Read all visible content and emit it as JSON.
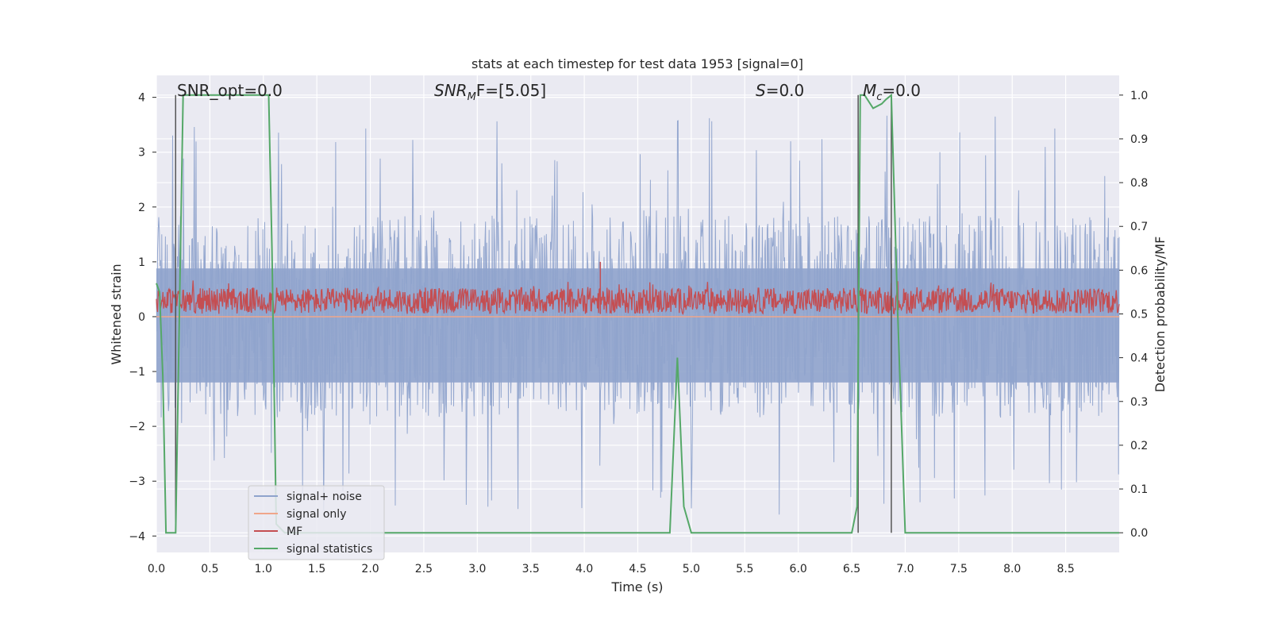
{
  "chart_data": {
    "type": "line",
    "title": "stats at each timestep for test data 1953 [signal=0]",
    "xlabel": "Time (s)",
    "ylabel": "Whitened strain",
    "ylabel_right": "Detection probability/MF",
    "xlim": [
      0.0,
      9.0
    ],
    "ylim": [
      -4.3,
      4.4
    ],
    "ylim_right": [
      -0.045,
      1.045
    ],
    "xticks": [
      "0.0",
      "0.5",
      "1.0",
      "1.5",
      "2.0",
      "2.5",
      "3.0",
      "3.5",
      "4.0",
      "4.5",
      "5.0",
      "5.5",
      "6.0",
      "6.5",
      "7.0",
      "7.5",
      "8.0",
      "8.5"
    ],
    "yticks": [
      "4",
      "3",
      "2",
      "1",
      "0",
      "−1",
      "−2",
      "−3",
      "−4"
    ],
    "yticks_right": [
      "1.0",
      "0.9",
      "0.8",
      "0.7",
      "0.6",
      "0.5",
      "0.4",
      "0.3",
      "0.2",
      "0.1",
      "0.0"
    ],
    "grid": true,
    "legend_position": "lower-left",
    "annotations": [
      {
        "text": "SNR_opt=0.0",
        "x": 0.19
      },
      {
        "text": "F=[5.05]",
        "math": "SNR",
        "sub": "M",
        "x": 2.6
      },
      {
        "text": "=0.0",
        "math": "S",
        "sub": "",
        "x": 5.6
      },
      {
        "text": "=0.0",
        "math": "M",
        "sub": "c",
        "x": 6.6
      }
    ],
    "vertical_lines_x": [
      0.18,
      6.56,
      6.87
    ],
    "series": [
      {
        "name": "signal+ noise",
        "color": "#8fa3cc",
        "envelope_typical": [
          -1.6,
          1.6
        ],
        "envelope_extreme": [
          -3.7,
          3.7
        ]
      },
      {
        "name": "signal only",
        "color": "#f0a68a",
        "values_y": 0.0
      },
      {
        "name": "MF",
        "color": "#c44e52",
        "band_right_axis": [
          0.5,
          0.56
        ],
        "peak": {
          "x": 4.15,
          "y": 1.0
        }
      },
      {
        "name": "signal statistics",
        "color": "#55a868",
        "x": [
          0.0,
          0.03,
          0.06,
          0.09,
          0.12,
          0.18,
          0.25,
          0.3,
          0.4,
          1.0,
          1.05,
          1.08,
          1.12,
          1.2,
          4.8,
          4.87,
          4.93,
          5.0,
          6.5,
          6.55,
          6.58,
          6.62,
          6.7,
          6.78,
          6.82,
          6.87,
          6.93,
          7.0,
          9.0
        ],
        "y": [
          0.57,
          0.55,
          0.36,
          0.0,
          0.0,
          0.0,
          1.0,
          1.0,
          1.0,
          1.0,
          1.0,
          0.65,
          0.02,
          0.0,
          0.0,
          0.4,
          0.06,
          0.0,
          0.0,
          0.06,
          1.0,
          1.0,
          0.97,
          0.98,
          0.99,
          1.0,
          0.5,
          0.0,
          0.0
        ]
      }
    ]
  }
}
